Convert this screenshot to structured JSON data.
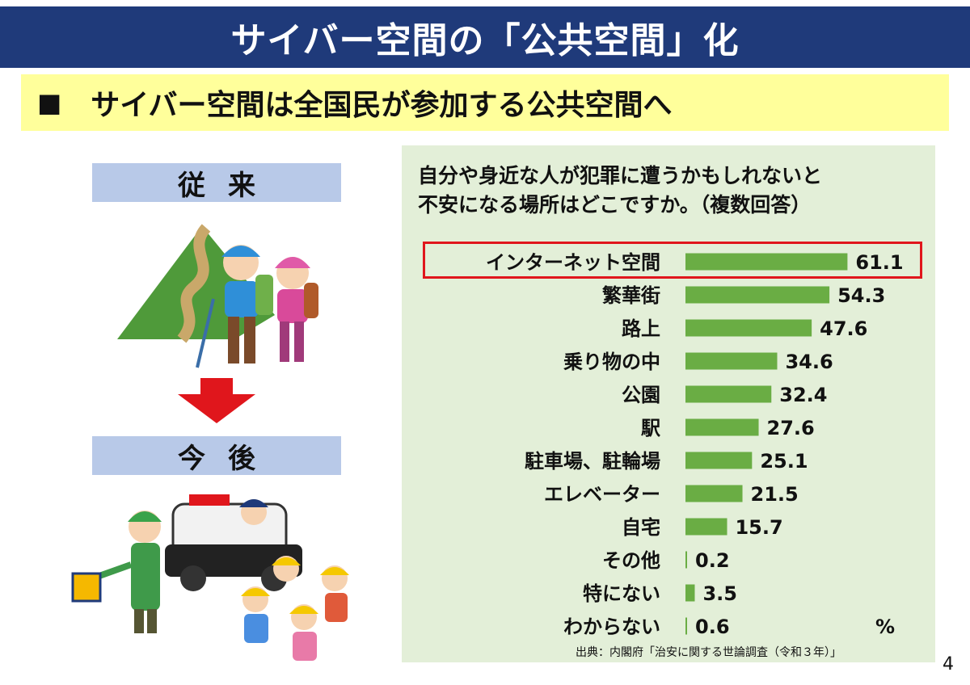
{
  "title": "サイバー空間の「公共空間」化",
  "subtitle": "サイバー空間は全国民が参加する公共空間へ",
  "bullet": "■",
  "left": {
    "before_label": "従来",
    "after_label": "今後"
  },
  "chart_data": {
    "type": "bar",
    "orientation": "horizontal",
    "title": "自分や身近な人が犯罪に遭うかもしれないと不安になる場所はどこですか。（複数回答）",
    "title_line1": "自分や身近な人が犯罪に遭うかもしれないと",
    "title_line2": "不安になる場所はどこですか。（複数回答）",
    "categories": [
      "インターネット空間",
      "繁華街",
      "路上",
      "乗り物の中",
      "公園",
      "駅",
      "駐車場、駐輪場",
      "エレベーター",
      "自宅",
      "その他",
      "特にない",
      "わからない"
    ],
    "values": [
      61.1,
      54.3,
      47.6,
      34.6,
      32.4,
      27.6,
      25.1,
      21.5,
      15.7,
      0.2,
      3.5,
      0.6
    ],
    "value_labels": [
      "61.1",
      "54.3",
      "47.6",
      "34.6",
      "32.4",
      "27.6",
      "25.1",
      "21.5",
      "15.7",
      "0.2",
      "3.5",
      "0.6"
    ],
    "unit": "%",
    "highlighted_category": "インターネット空間",
    "bar_color": "#6aad44",
    "highlight_color": "#e0161c",
    "xlim": [
      0,
      70
    ],
    "grid": false
  },
  "source": "出典：内閣府「治安に関する世論調査（令和３年）」",
  "page_number": "4",
  "colors": {
    "title_bg": "#1f3a7a",
    "subtitle_bg": "#ffff9b",
    "label_bg": "#b8c9e8",
    "panel_bg": "#e3efd8",
    "arrow": "#e0161c"
  }
}
